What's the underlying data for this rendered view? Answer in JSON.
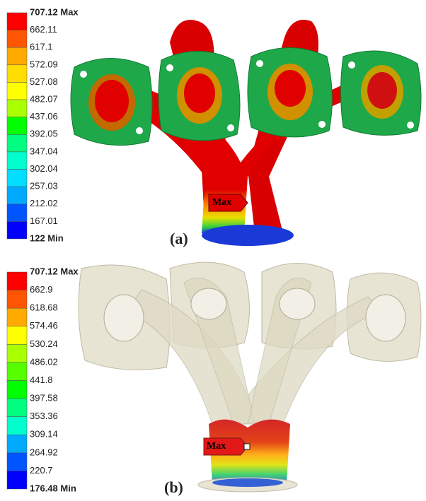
{
  "panels": [
    {
      "legend": [
        "707.12 Max",
        "662.11",
        "617.1",
        "572.09",
        "527.08",
        "482.07",
        "437.06",
        "392.05",
        "347.04",
        "302.04",
        "257.03",
        "212.02",
        "167.01",
        "122 Min"
      ],
      "marker": "Max",
      "label": "(a)"
    },
    {
      "legend": [
        "707.12 Max",
        "662.9",
        "618.68",
        "574.46",
        "530.24",
        "486.02",
        "441.8",
        "397.58",
        "353.36",
        "309.14",
        "264.92",
        "220.7",
        "176.48 Min"
      ],
      "marker": "Max",
      "label": "(b)"
    }
  ]
}
